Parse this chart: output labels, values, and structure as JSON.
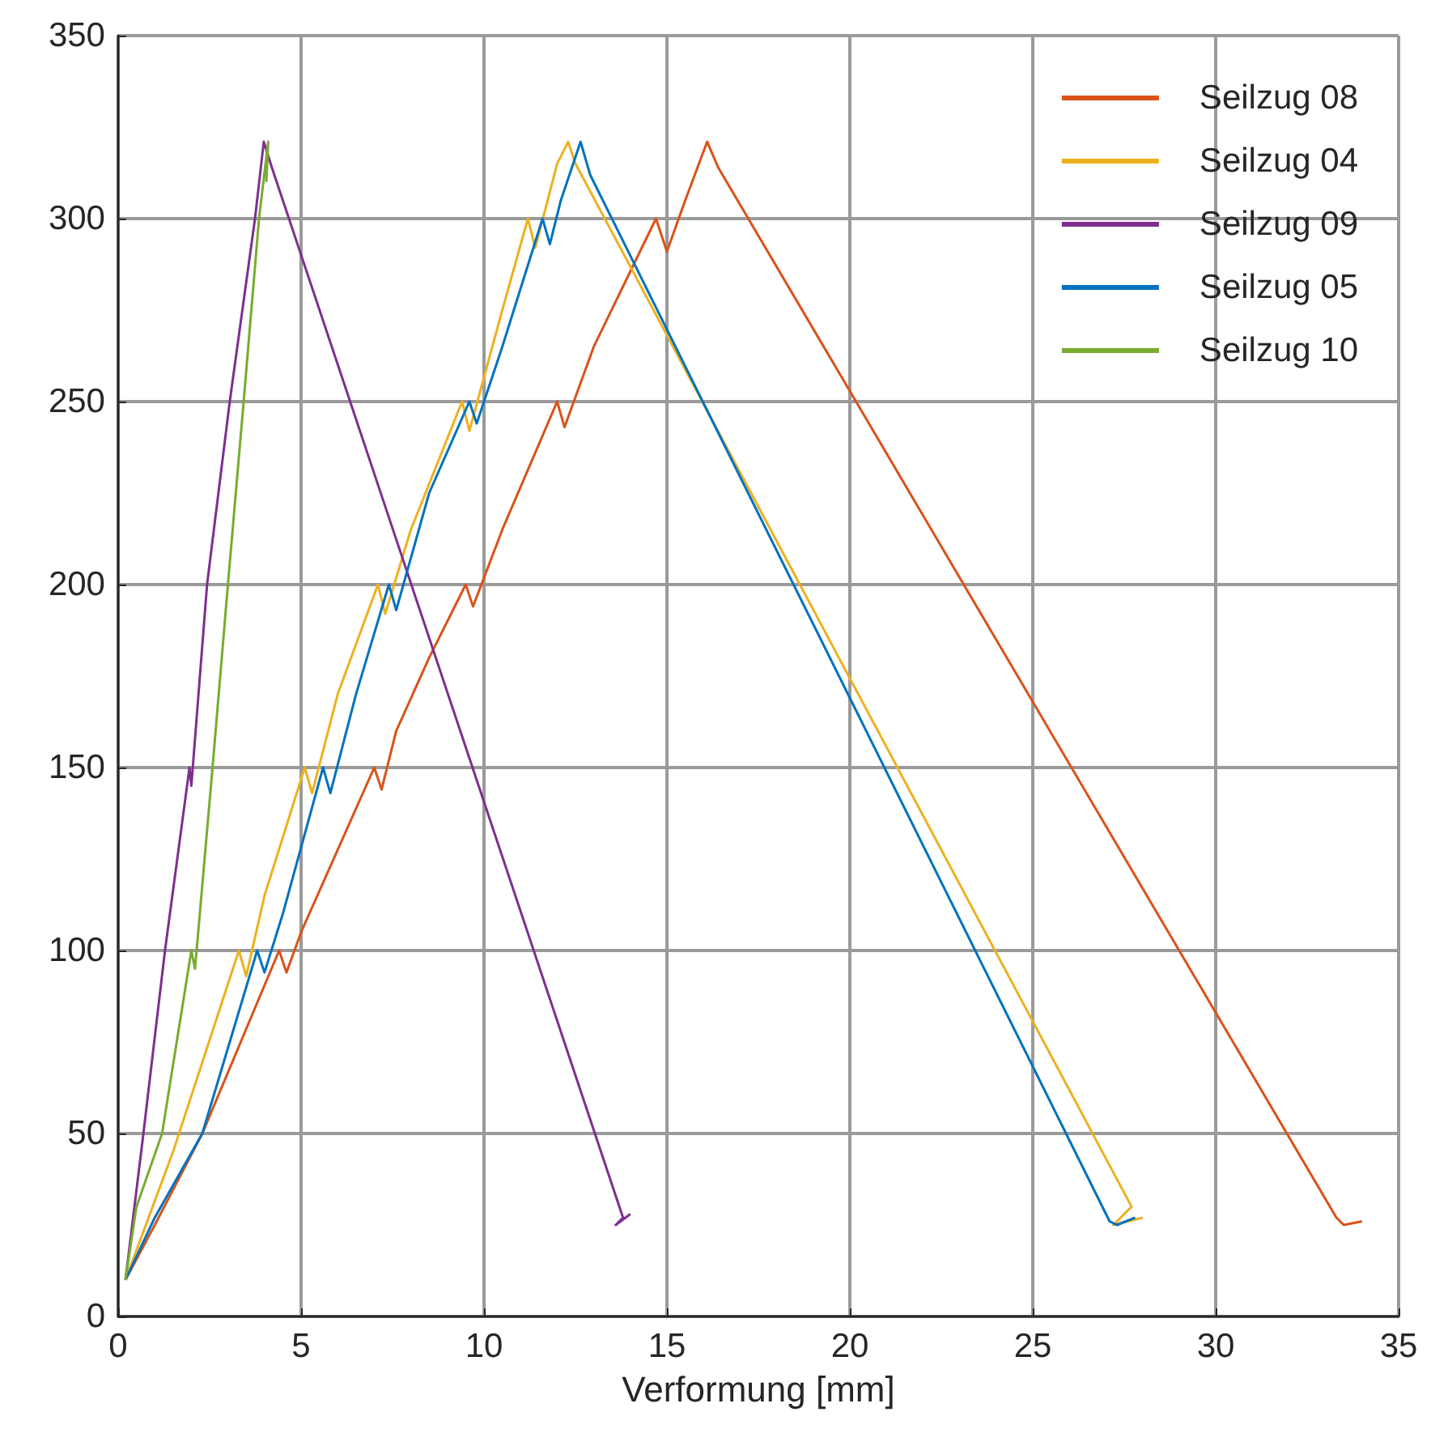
{
  "chart_data": {
    "type": "line",
    "xlabel": "Verformung [mm]",
    "xlim": [
      0,
      35
    ],
    "xticks": [
      0,
      5,
      10,
      15,
      20,
      25,
      30,
      35
    ],
    "ylim": [
      0,
      350
    ],
    "yticks": [
      0,
      50,
      100,
      150,
      200,
      250,
      300,
      350
    ],
    "grid": true,
    "legend": "top right",
    "marker": "none",
    "line_style": "solid",
    "series": [
      {
        "name": "Seilzug 08",
        "color": "#d95319",
        "x": [
          0.2,
          1,
          2.3,
          4.4,
          4.6,
          5,
          7,
          7.2,
          7.6,
          8.5,
          9.5,
          9.7,
          10.5,
          12,
          12.2,
          13,
          14.7,
          15,
          15.5,
          16.1,
          16.4,
          33.3,
          33.5,
          34
        ],
        "values": [
          10,
          25,
          50,
          100,
          94,
          105,
          150,
          144,
          160,
          180,
          200,
          194,
          215,
          250,
          243,
          265,
          300,
          291,
          305,
          321,
          314,
          27,
          25,
          26
        ]
      },
      {
        "name": "Seilzug 04",
        "color": "#edb120",
        "x": [
          0.2,
          1.5,
          3.3,
          3.5,
          4,
          5.1,
          5.3,
          6,
          7.1,
          7.3,
          8,
          9.4,
          9.6,
          10.5,
          11.2,
          11.4,
          12,
          12.3,
          12.5,
          27.7,
          27.2,
          28
        ],
        "values": [
          10,
          45,
          100,
          93,
          115,
          150,
          143,
          170,
          200,
          192,
          215,
          250,
          242,
          275,
          300,
          292,
          315,
          321,
          315,
          30,
          25,
          27
        ]
      },
      {
        "name": "Seilzug 09",
        "color": "#7e2f8e",
        "x": [
          0.2,
          0.69,
          1.28,
          1.95,
          2,
          2.43,
          3.05,
          3.74,
          3.98,
          4.2,
          13.8,
          13.6,
          14
        ],
        "values": [
          10,
          50,
          100,
          150,
          145,
          200,
          250,
          300,
          321,
          314,
          27,
          25,
          28
        ]
      },
      {
        "name": "Seilzug 05",
        "color": "#0072bd",
        "x": [
          0.2,
          1,
          2.3,
          3.8,
          4,
          4.5,
          5.6,
          5.8,
          6.5,
          7.4,
          7.6,
          8.5,
          9.6,
          9.8,
          10.5,
          11.6,
          11.8,
          12.1,
          12.64,
          12.9,
          27.1,
          27.3,
          27.8
        ],
        "values": [
          10,
          27,
          50,
          100,
          94,
          110,
          150,
          143,
          170,
          200,
          193,
          225,
          250,
          244,
          265,
          300,
          293,
          305,
          321,
          312,
          26,
          25,
          27
        ]
      },
      {
        "name": "Seilzug 10",
        "color": "#77ac30",
        "x": [
          0.2,
          0.5,
          1.2,
          2,
          2.1,
          2.58,
          3,
          3.43,
          3.85,
          4.1,
          4.05
        ],
        "values": [
          10,
          30,
          50,
          100,
          95,
          150,
          200,
          250,
          300,
          321,
          310
        ]
      }
    ]
  }
}
